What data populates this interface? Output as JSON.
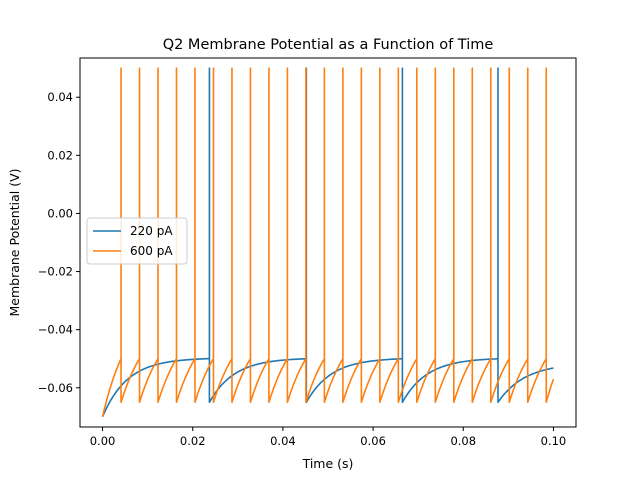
{
  "chart_data": {
    "type": "line",
    "title": "Q2 Membrane Potential as a Function of Time",
    "xlabel": "Time (s)",
    "ylabel": "Membrane Potential (V)",
    "xlim": [
      -0.005,
      0.105
    ],
    "ylim": [
      -0.0735,
      0.0535
    ],
    "xticks": [
      0.0,
      0.02,
      0.04,
      0.06,
      0.08,
      0.1
    ],
    "xtick_labels": [
      "0.00",
      "0.02",
      "0.04",
      "0.06",
      "0.08",
      "0.10"
    ],
    "yticks": [
      -0.06,
      -0.04,
      -0.02,
      0.0,
      0.02,
      0.04
    ],
    "ytick_labels": [
      "−0.06",
      "−0.04",
      "−0.02",
      "0.00",
      "0.02",
      "0.04"
    ],
    "grid": false,
    "legend_position": "center-left",
    "series": [
      {
        "name": "220 pA",
        "color": "#1f77b4",
        "model": "leaky integrate-and-fire",
        "v_start": -0.07,
        "v_reset": -0.065,
        "v_asymptote": -0.0497,
        "tau": 0.0055,
        "threshold": -0.05,
        "spike_peak": 0.05,
        "spike_times": [
          0.0237,
          0.0452,
          0.0665,
          0.0877
        ],
        "end_value": -0.0532
      },
      {
        "name": "600 pA",
        "color": "#ff7f0e",
        "model": "leaky integrate-and-fire",
        "v_start": -0.07,
        "v_reset": -0.065,
        "threshold": -0.05,
        "spike_peak": 0.05,
        "spike_times": [
          0.0041,
          0.0082,
          0.0123,
          0.0164,
          0.0205,
          0.0246,
          0.0287,
          0.0328,
          0.0369,
          0.041,
          0.0451,
          0.0492,
          0.0533,
          0.0574,
          0.0615,
          0.0656,
          0.0697,
          0.0738,
          0.0779,
          0.082,
          0.0861,
          0.0902,
          0.0943,
          0.0984
        ],
        "end_value": -0.057
      }
    ],
    "x_end": 0.1
  }
}
